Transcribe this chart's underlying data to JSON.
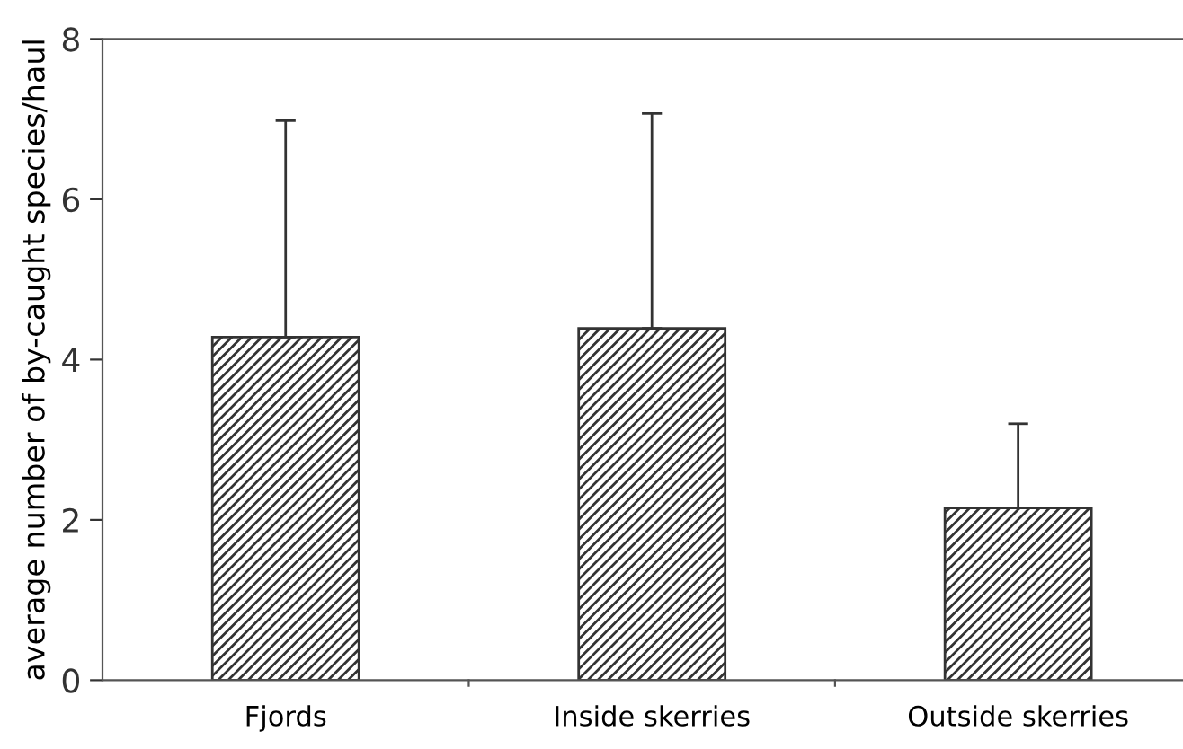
{
  "chart_data": {
    "type": "bar",
    "ylabel": "average number of by-caught species/haul",
    "categories": [
      "Fjords",
      "Inside skerries",
      "Outside skerries"
    ],
    "values": [
      4.28,
      4.39,
      2.15
    ],
    "errors": [
      [
        4.28,
        6.98
      ],
      [
        4.39,
        7.07
      ],
      [
        2.15,
        3.2
      ]
    ],
    "color": "#333333",
    "ylim": [
      0,
      8
    ],
    "yticks": [
      0,
      2,
      4,
      6,
      8
    ],
    "grid": false,
    "legend": false
  }
}
